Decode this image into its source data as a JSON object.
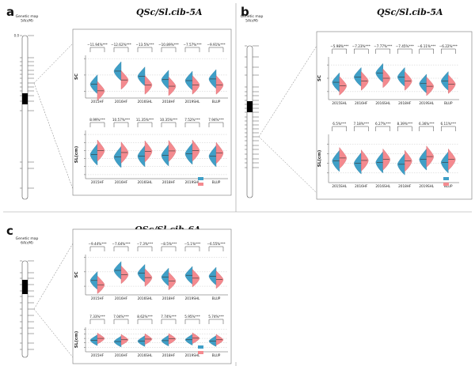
{
  "colors": {
    "blue_allele": "#3f9fc7",
    "red_allele": "#f48a8f",
    "centromere": "#000000"
  },
  "panels": [
    {
      "letter": "a",
      "title": "QSc/Sl.cib-5A"
    },
    {
      "letter": "b",
      "title": "QSc/Sl.cib-5A"
    },
    {
      "letter": "c",
      "title": "QSc/Sl.cib-6A"
    }
  ],
  "chart_data": [
    {
      "type": "violin",
      "panel": "a",
      "title": "QSc/Sl.cib-5A",
      "categories": [
        "2015HF",
        "2016HF",
        "2016SHL",
        "2018HF",
        "2019SHL",
        "BLUP"
      ],
      "facets": [
        {
          "ylabel": "SC",
          "ylim": [
            1.3,
            2.6
          ],
          "yticks": [
            1.5,
            2.0,
            2.5
          ],
          "percent_labels": [
            "−11.94%***",
            "−12.62%***",
            "−13.5%***",
            "−10.89%***",
            "−7.57%***",
            "−9.91%***"
          ],
          "blue_median": [
            1.72,
            2.12,
            1.96,
            1.86,
            1.83,
            1.88
          ],
          "red_median": [
            1.52,
            1.85,
            1.7,
            1.66,
            1.7,
            1.7
          ]
        },
        {
          "ylabel": "SL(cm)",
          "ylim": [
            5,
            17
          ],
          "yticks": [
            6,
            8,
            10,
            12,
            14,
            16
          ],
          "percent_labels": [
            "8.99%***",
            "10.57%***",
            "11.35%***",
            "10.35%***",
            "7.52%***",
            "7.94%***"
          ],
          "blue_median": [
            11.0,
            10.4,
            10.6,
            10.8,
            11.2,
            10.6
          ],
          "red_median": [
            12.0,
            11.5,
            11.8,
            11.9,
            12.0,
            11.4
          ]
        }
      ],
      "legend": [
        "",
        ""
      ]
    },
    {
      "type": "violin",
      "panel": "b",
      "title": "QSc/Sl.cib-5A",
      "categories": [
        "2015SHL",
        "2016HF",
        "2016SHL",
        "2018HF",
        "2019SHL",
        "BLUP"
      ],
      "facets": [
        {
          "ylabel": "SC",
          "ylim": [
            1.2,
            2.8
          ],
          "yticks": [
            1.5,
            2.0,
            2.5
          ],
          "percent_labels": [
            "−5.98%***",
            "−7.23%***",
            "−7.77%***",
            "−7.45%***",
            "−6.11%***",
            "−6.22%***"
          ],
          "blue_median": [
            1.85,
            2.05,
            2.2,
            2.05,
            1.8,
            1.9
          ],
          "red_median": [
            1.72,
            1.9,
            2.0,
            1.9,
            1.7,
            1.78
          ]
        },
        {
          "ylabel": "SL(cm)",
          "ylim": [
            6,
            16
          ],
          "yticks": [
            8,
            10,
            12,
            14
          ],
          "percent_labels": [
            "6.5%***",
            "7.18%***",
            "6.27%***",
            "8.39%***",
            "6.36%***",
            "6.11%***"
          ],
          "blue_median": [
            10.5,
            10.0,
            10.2,
            9.8,
            10.8,
            10.2
          ],
          "red_median": [
            11.1,
            10.6,
            10.8,
            10.5,
            11.4,
            10.8
          ]
        }
      ],
      "legend": [
        "",
        ""
      ]
    },
    {
      "type": "violin",
      "panel": "c",
      "title": "QSc/Sl.cib-6A",
      "categories": [
        "2015HF",
        "2016HF",
        "2016SHL",
        "2018HF",
        "2019SHL",
        "BLUP"
      ],
      "facets": [
        {
          "ylabel": "SC",
          "ylim": [
            1.2,
            2.6
          ],
          "yticks": [
            1.5,
            2.0,
            2.5
          ],
          "percent_labels": [
            "−9.44%***",
            "−7.64%***",
            "−7.3%***",
            "−8.5%***",
            "−5.1%***",
            "−6.55%***"
          ],
          "blue_median": [
            1.7,
            2.05,
            1.95,
            1.82,
            1.88,
            1.85
          ],
          "red_median": [
            1.55,
            1.9,
            1.8,
            1.68,
            1.78,
            1.73
          ]
        },
        {
          "ylabel": "SL(cm)",
          "ylim": [
            6,
            17
          ],
          "yticks": [
            8,
            10,
            12,
            14,
            16
          ],
          "percent_labels": [
            "7.33%***",
            "7.04%***",
            "8.62%***",
            "7.74%***",
            "5.95%***",
            "5.74%***"
          ],
          "blue_median": [
            11.2,
            10.6,
            10.8,
            11.0,
            11.4,
            10.8
          ],
          "red_median": [
            12.0,
            11.4,
            11.7,
            11.8,
            12.1,
            11.4
          ]
        }
      ],
      "legend": [
        "",
        ""
      ]
    }
  ],
  "genetic_maps": [
    {
      "panel": "a",
      "label_line1": "Genetic map",
      "label_line2": "5A(cM)",
      "markers": [
        {
          "pos": "0.0",
          "name": "",
          "highlight": false
        },
        {
          "pos": "",
          "name": "",
          "highlight": false
        },
        {
          "pos": "",
          "name": "",
          "highlight": false
        },
        {
          "pos": "",
          "name": "",
          "highlight": false
        },
        {
          "pos": "",
          "name": "",
          "highlight": false
        },
        {
          "pos": "",
          "name": "",
          "highlight": false
        },
        {
          "pos": "",
          "name": "",
          "highlight": false
        },
        {
          "pos": "",
          "name": "",
          "highlight": true
        },
        {
          "pos": "",
          "name": "",
          "highlight": false
        },
        {
          "pos": "",
          "name": "",
          "highlight": false
        },
        {
          "pos": "",
          "name": "",
          "highlight": false
        },
        {
          "pos": "",
          "name": "",
          "highlight": false
        },
        {
          "pos": "",
          "name": "",
          "highlight": false
        },
        {
          "pos": "",
          "name": "",
          "highlight": false
        },
        {
          "pos": "",
          "name": "",
          "highlight": true
        },
        {
          "pos": "",
          "name": "",
          "highlight": false
        }
      ]
    },
    {
      "panel": "b",
      "label_line1": "Genetic map",
      "label_line2": "5A(cM)",
      "markers": [
        {
          "pos": "",
          "name": "",
          "highlight": false
        },
        {
          "pos": "",
          "name": "",
          "highlight": false
        },
        {
          "pos": "",
          "name": "",
          "highlight": false
        },
        {
          "pos": "",
          "name": "",
          "highlight": false
        },
        {
          "pos": "",
          "name": "",
          "highlight": false
        },
        {
          "pos": "",
          "name": "",
          "highlight": false
        },
        {
          "pos": "",
          "name": "",
          "highlight": false
        },
        {
          "pos": "",
          "name": "",
          "highlight": false
        },
        {
          "pos": "",
          "name": "",
          "highlight": false
        },
        {
          "pos": "",
          "name": "",
          "highlight": false
        },
        {
          "pos": "",
          "name": "",
          "highlight": false
        },
        {
          "pos": "",
          "name": "",
          "highlight": false
        },
        {
          "pos": "",
          "name": "",
          "highlight": false
        },
        {
          "pos": "",
          "name": "",
          "highlight": false
        },
        {
          "pos": "",
          "name": "",
          "highlight": false
        },
        {
          "pos": "",
          "name": "",
          "highlight": false
        },
        {
          "pos": "",
          "name": "",
          "highlight": true
        },
        {
          "pos": "",
          "name": "",
          "highlight": false
        },
        {
          "pos": "",
          "name": "",
          "highlight": false
        },
        {
          "pos": "",
          "name": "",
          "highlight": false
        },
        {
          "pos": "",
          "name": "",
          "highlight": false
        },
        {
          "pos": "",
          "name": "",
          "highlight": false
        },
        {
          "pos": "",
          "name": "",
          "highlight": false
        },
        {
          "pos": "",
          "name": "",
          "highlight": false
        }
      ]
    },
    {
      "panel": "c",
      "label_line1": "Genetic map",
      "label_line2": "6A(cM)",
      "markers": [
        {
          "pos": "",
          "name": "",
          "highlight": false
        },
        {
          "pos": "",
          "name": "",
          "highlight": false
        },
        {
          "pos": "",
          "name": "",
          "highlight": false
        },
        {
          "pos": "",
          "name": "",
          "highlight": false
        },
        {
          "pos": "",
          "name": "",
          "highlight": false
        },
        {
          "pos": "",
          "name": "",
          "highlight": false
        },
        {
          "pos": "",
          "name": "",
          "highlight": false
        },
        {
          "pos": "",
          "name": "",
          "highlight": true
        },
        {
          "pos": "",
          "name": "",
          "highlight": false
        },
        {
          "pos": "",
          "name": "",
          "highlight": false
        },
        {
          "pos": "",
          "name": "",
          "highlight": false
        },
        {
          "pos": "",
          "name": "",
          "highlight": false
        },
        {
          "pos": "",
          "name": "",
          "highlight": false
        },
        {
          "pos": "",
          "name": "",
          "highlight": false
        }
      ]
    }
  ]
}
